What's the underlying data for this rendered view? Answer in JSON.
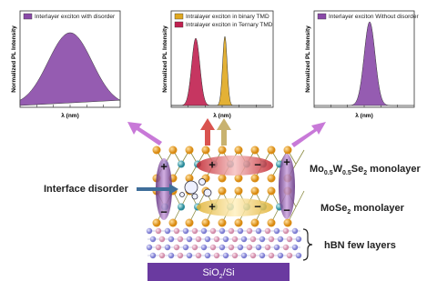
{
  "panels": [
    {
      "legends": [
        "Interlayer exciton with disorder"
      ],
      "y_label": "Normalized PL Intensity",
      "x_label": "λ (nm)"
    },
    {
      "legends": [
        "Intralayer exciton in binary TMD",
        "Intralayer exciton in Ternary TMD"
      ],
      "y_label": "Normalized PL Intensity",
      "x_label": "λ (nm)"
    },
    {
      "legends": [
        "Interlayer exciton Without disorder"
      ],
      "y_label": "Normalized PL Intensity",
      "x_label": "λ (nm)"
    }
  ],
  "labels": {
    "interface": "Interface disorder",
    "top_layer": [
      "Mo",
      "0.5",
      "W",
      "0.5",
      "Se",
      "2",
      " monolayer"
    ],
    "bottom_layer": [
      "MoSe",
      "2",
      " monolayer"
    ],
    "hbn": "hBN few layers",
    "substrate": [
      "SiO",
      "2",
      "/Si"
    ]
  },
  "charges": [
    "+",
    "−"
  ]
}
